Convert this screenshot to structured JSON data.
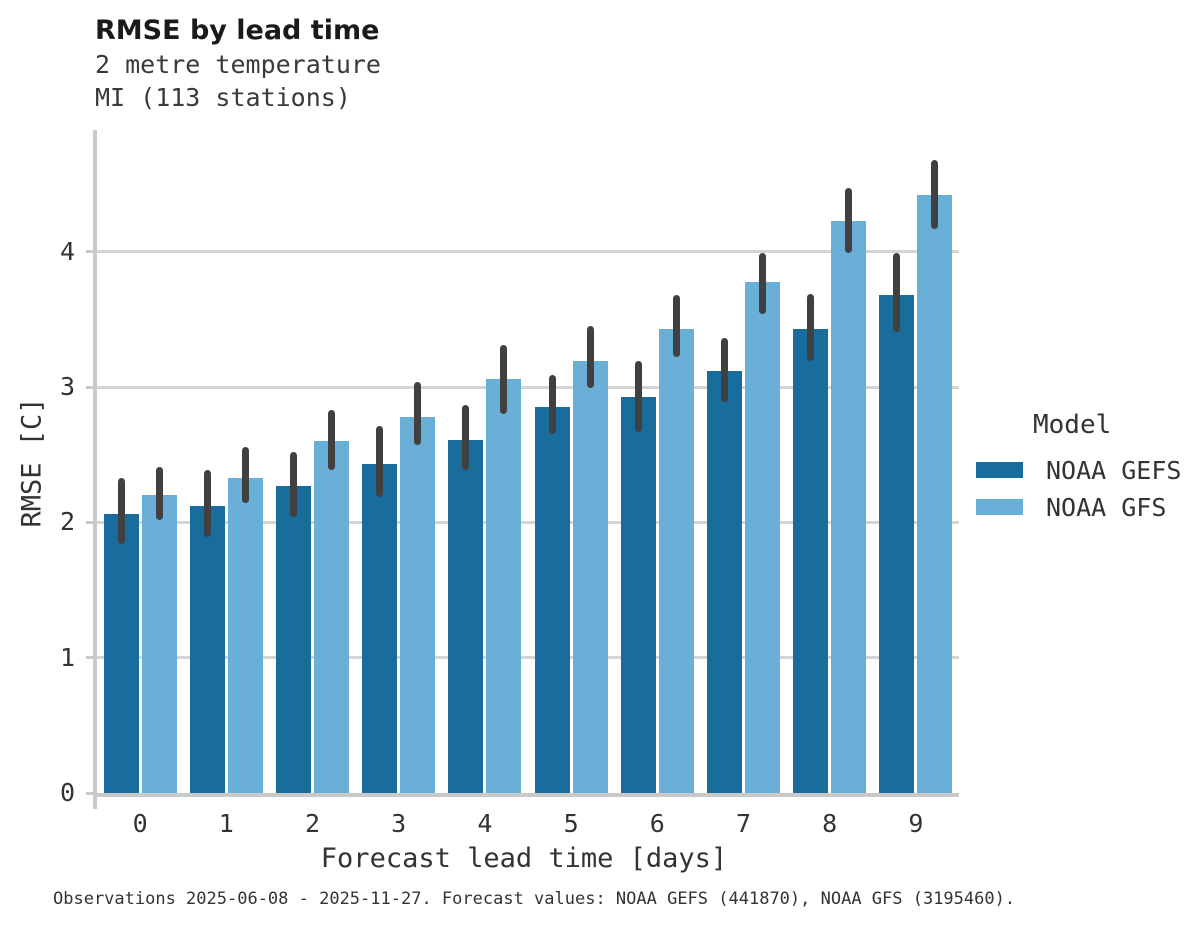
{
  "header": {
    "title": "RMSE by lead time",
    "subtitle_line1": "2 metre temperature",
    "subtitle_line2": "MI (113 stations)"
  },
  "legend": {
    "title": "Model",
    "entries": [
      {
        "label": "NOAA GEFS",
        "color": "#186d9d"
      },
      {
        "label": "NOAA GFS",
        "color": "#69afd8"
      }
    ]
  },
  "footer": {
    "text": "Observations 2025-06-08 - 2025-11-27. Forecast values: NOAA GEFS (441870), NOAA GFS (3195460)."
  },
  "colors": {
    "gefs_bar": "#186d9d",
    "gfs_bar": "#69afd8",
    "error_bar": "#404040",
    "gridline": "#d4d4d4",
    "axis_line": "#c9c9c9"
  },
  "chart_data": {
    "type": "bar",
    "title": "RMSE by lead time",
    "subtitle": [
      "2 metre temperature",
      "MI (113 stations)"
    ],
    "xlabel": "Forecast lead time [days]",
    "ylabel": "RMSE [C]",
    "categories": [
      0,
      1,
      2,
      3,
      4,
      5,
      6,
      7,
      8,
      9
    ],
    "yticks": [
      0,
      1,
      2,
      3,
      4
    ],
    "ylim": [
      0,
      4.9
    ],
    "grid": true,
    "legend_position": "right",
    "error_bars": true,
    "series": [
      {
        "name": "NOAA GEFS",
        "color": "#186d9d",
        "values": [
          2.06,
          2.12,
          2.27,
          2.43,
          2.61,
          2.85,
          2.93,
          3.12,
          3.43,
          3.68
        ],
        "err_lo": [
          1.84,
          1.89,
          2.04,
          2.19,
          2.39,
          2.65,
          2.67,
          2.89,
          3.19,
          3.41
        ],
        "err_hi": [
          2.33,
          2.39,
          2.52,
          2.71,
          2.87,
          3.09,
          3.19,
          3.36,
          3.69,
          3.99
        ]
      },
      {
        "name": "NOAA GFS",
        "color": "#69afd8",
        "values": [
          2.2,
          2.33,
          2.6,
          2.78,
          3.06,
          3.19,
          3.43,
          3.78,
          4.23,
          4.42
        ],
        "err_lo": [
          2.02,
          2.14,
          2.39,
          2.57,
          2.8,
          2.99,
          3.22,
          3.54,
          3.99,
          4.17
        ],
        "err_hi": [
          2.41,
          2.56,
          2.83,
          3.04,
          3.31,
          3.45,
          3.68,
          3.99,
          4.47,
          4.68
        ]
      }
    ]
  }
}
